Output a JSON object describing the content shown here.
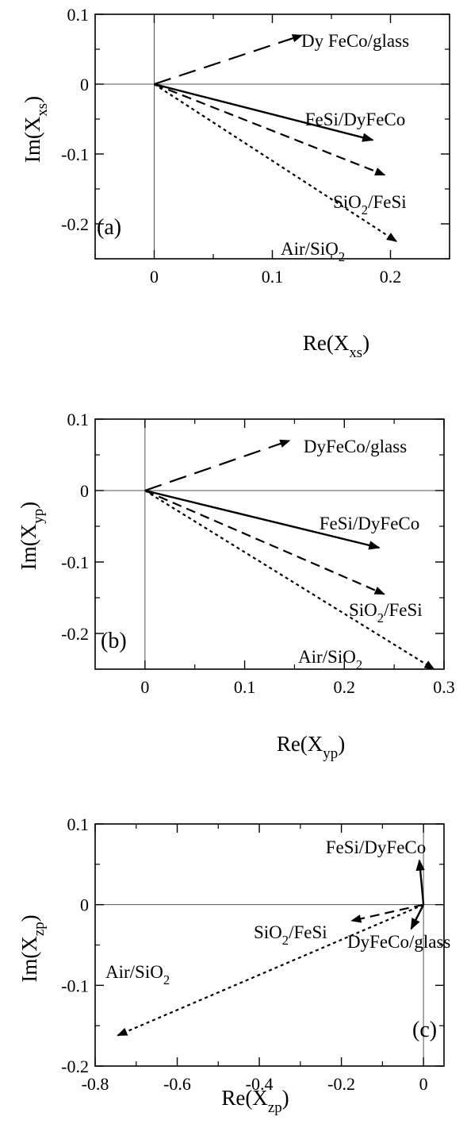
{
  "chart_data": [
    {
      "type": "line",
      "panel_label": "(a)",
      "xlabel": {
        "base": "Re(X",
        "sub": "xs",
        "tail": ")"
      },
      "ylabel": {
        "base": "Im(X",
        "sub": "xs",
        "tail": ")"
      },
      "xlim": [
        -0.05,
        0.25
      ],
      "ylim": [
        -0.25,
        0.1
      ],
      "xticks": [
        0,
        0.1,
        0.2
      ],
      "xtick_labels": [
        "0",
        "0.1",
        "0.2"
      ],
      "yticks": [
        0.1,
        0,
        -0.1,
        -0.2
      ],
      "ytick_labels": [
        "0.1",
        "0",
        "-0.1",
        "-0.2"
      ],
      "xminor": [
        -0.05,
        0.05,
        0.15,
        0.25
      ],
      "yminor": [
        0.05,
        -0.05,
        -0.15,
        -0.25
      ],
      "origin_lines": true,
      "series": [
        {
          "name": "Dy FeCo/glass",
          "label": [
            {
              "t": "Dy FeCo/glass"
            }
          ],
          "style": "long-dash",
          "x": [
            0,
            0.125
          ],
          "y": [
            0,
            0.07
          ]
        },
        {
          "name": "FeSi/DyFeCo",
          "label": [
            {
              "t": "FeSi/DyFeCo"
            }
          ],
          "style": "solid",
          "x": [
            0,
            0.185
          ],
          "y": [
            0,
            -0.08
          ]
        },
        {
          "name": "SiO2/FeSi",
          "label": [
            {
              "t": "SiO"
            },
            {
              "t": "2",
              "sub": true
            },
            {
              "t": "/FeSi"
            }
          ],
          "style": "dash",
          "x": [
            0,
            0.195
          ],
          "y": [
            0,
            -0.13
          ]
        },
        {
          "name": "Air/SiO2",
          "label": [
            {
              "t": "Air/SiO"
            },
            {
              "t": "2",
              "sub": true
            }
          ],
          "style": "dot",
          "x": [
            0,
            0.205
          ],
          "y": [
            0,
            -0.225
          ]
        }
      ]
    },
    {
      "type": "line",
      "panel_label": "(b)",
      "xlabel": {
        "base": "Re(X",
        "sub": "yp",
        "tail": ")"
      },
      "ylabel": {
        "base": "Im(X",
        "sub": "yp",
        "tail": ")"
      },
      "xlim": [
        -0.05,
        0.3
      ],
      "ylim": [
        -0.25,
        0.1
      ],
      "xticks": [
        0,
        0.1,
        0.2,
        0.3
      ],
      "xtick_labels": [
        "0",
        "0.1",
        "0.2",
        "0.3"
      ],
      "yticks": [
        0.1,
        0,
        -0.1,
        -0.2
      ],
      "ytick_labels": [
        "0.1",
        "0",
        "-0.1",
        "-0.2"
      ],
      "xminor": [
        0.05,
        0.15,
        0.25
      ],
      "yminor": [
        0.05,
        -0.05,
        -0.15
      ],
      "origin_lines": true,
      "series": [
        {
          "name": "DyFeCo/glass",
          "label": [
            {
              "t": "DyFeCo/glass"
            }
          ],
          "style": "long-dash",
          "x": [
            0,
            0.145
          ],
          "y": [
            0,
            0.07
          ]
        },
        {
          "name": "FeSi/DyFeCo",
          "label": [
            {
              "t": "FeSi/DyFeCo"
            }
          ],
          "style": "solid",
          "x": [
            0,
            0.235
          ],
          "y": [
            0,
            -0.08
          ]
        },
        {
          "name": "SiO2/FeSi",
          "label": [
            {
              "t": "SiO"
            },
            {
              "t": "2",
              "sub": true
            },
            {
              "t": "/FeSi"
            }
          ],
          "style": "dash",
          "x": [
            0,
            0.24
          ],
          "y": [
            0,
            -0.145
          ]
        },
        {
          "name": "Air/SiO2",
          "label": [
            {
              "t": "Air/SiO"
            },
            {
              "t": "2",
              "sub": true
            }
          ],
          "style": "dot",
          "x": [
            0,
            0.29
          ],
          "y": [
            0,
            -0.25
          ]
        }
      ]
    },
    {
      "type": "line",
      "panel_label": "(c)",
      "xlabel": {
        "base": "Re(X",
        "sub": "zp",
        "tail": ")"
      },
      "ylabel": {
        "base": "Im(X",
        "sub": "zp",
        "tail": ")"
      },
      "xlim": [
        -0.8,
        0.05
      ],
      "ylim": [
        -0.2,
        0.1
      ],
      "xticks": [
        -0.8,
        -0.6,
        -0.4,
        -0.2,
        0
      ],
      "xtick_labels": [
        "-0.8",
        "-0.6",
        "-0.4",
        "-0.2",
        "0"
      ],
      "yticks": [
        0.1,
        0,
        -0.1,
        -0.2
      ],
      "ytick_labels": [
        "0.1",
        "0",
        "-0.1",
        "-0.2"
      ],
      "xminor": [
        -0.7,
        -0.5,
        -0.3,
        -0.1
      ],
      "yminor": [
        0.05,
        -0.05,
        -0.15
      ],
      "origin_lines": true,
      "series": [
        {
          "name": "FeSi/DyFeCo",
          "label": [
            {
              "t": "FeSi/DyFeCo"
            }
          ],
          "style": "solid",
          "x": [
            0,
            -0.01
          ],
          "y": [
            0,
            0.055
          ]
        },
        {
          "name": "SiO2/FeSi",
          "label": [
            {
              "t": "SiO"
            },
            {
              "t": "2",
              "sub": true
            },
            {
              "t": "/FeSi"
            }
          ],
          "style": "dash",
          "x": [
            0,
            -0.175
          ],
          "y": [
            0,
            -0.02
          ]
        },
        {
          "name": "DyFeCo/glass",
          "label": [
            {
              "t": "DyFeCo/glass"
            }
          ],
          "style": "solid",
          "x": [
            0,
            -0.03
          ],
          "y": [
            0,
            -0.03
          ]
        },
        {
          "name": "Air/SiO2",
          "label": [
            {
              "t": "Air/SiO"
            },
            {
              "t": "2",
              "sub": true
            }
          ],
          "style": "dot",
          "x": [
            0,
            -0.745
          ],
          "y": [
            0,
            -0.162
          ]
        }
      ]
    }
  ]
}
